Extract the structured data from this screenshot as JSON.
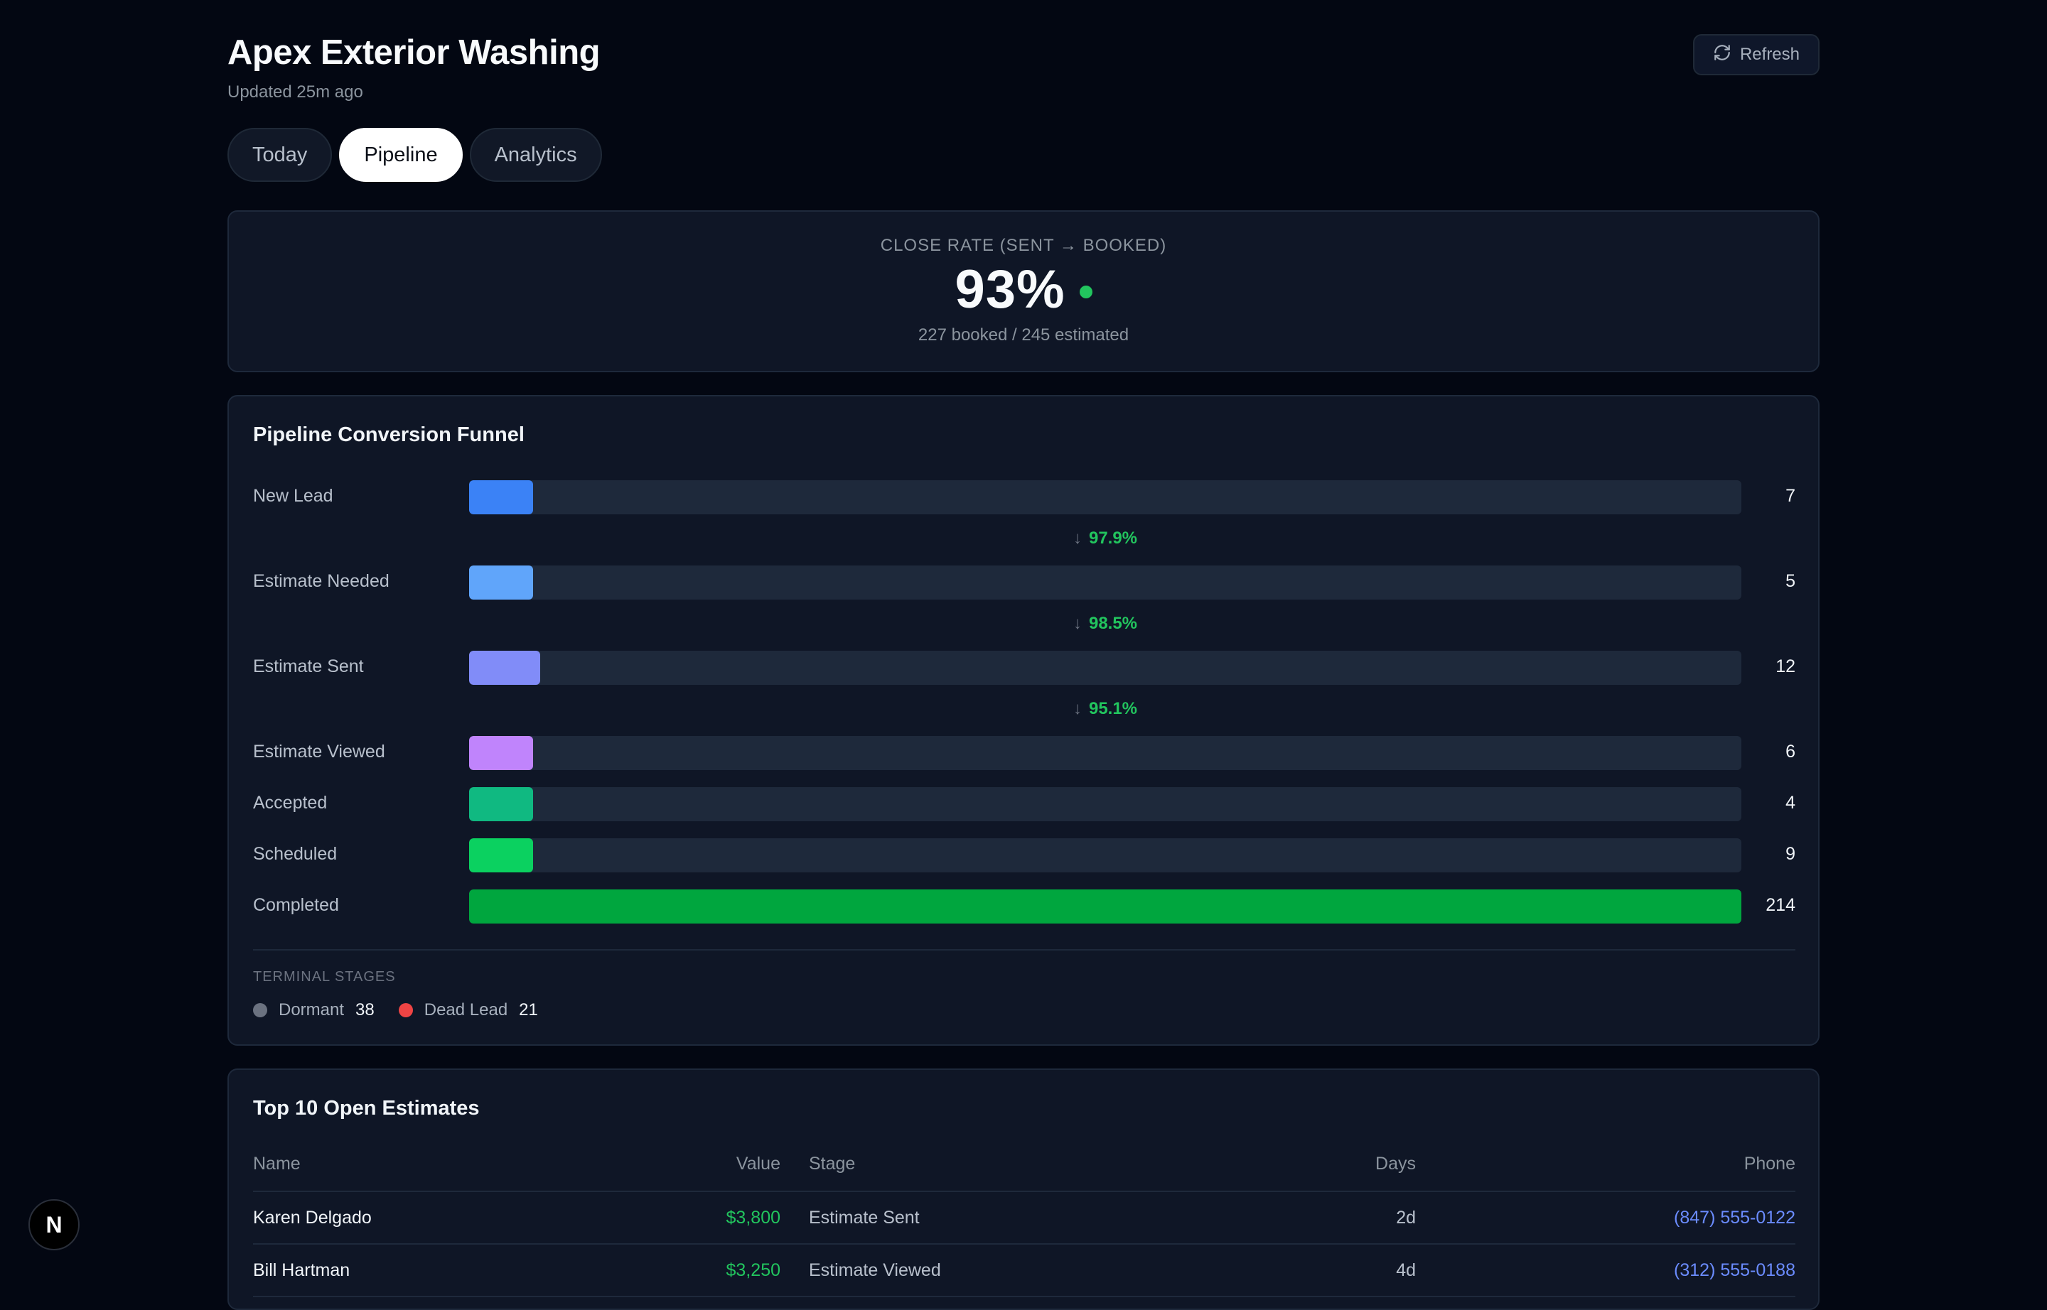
{
  "header": {
    "title": "Apex Exterior Washing",
    "updated": "Updated 25m ago",
    "refresh_label": "Refresh"
  },
  "tabs": [
    {
      "label": "Today",
      "active": false
    },
    {
      "label": "Pipeline",
      "active": true
    },
    {
      "label": "Analytics",
      "active": false
    }
  ],
  "close_rate": {
    "label": "CLOSE RATE (SENT → BOOKED)",
    "value": "93%",
    "detail": "227 booked / 245 estimated",
    "status_color": "#22c55e"
  },
  "funnel": {
    "title": "Pipeline Conversion Funnel",
    "max": 214,
    "stages": [
      {
        "label": "New Lead",
        "count": 7,
        "color": "#3b82f6"
      },
      {
        "label": "Estimate Needed",
        "count": 5,
        "color": "#60a5fa"
      },
      {
        "label": "Estimate Sent",
        "count": 12,
        "color": "#818cf8"
      },
      {
        "label": "Estimate Viewed",
        "count": 6,
        "color": "#c084fc"
      },
      {
        "label": "Accepted",
        "count": 4,
        "color": "#10b981"
      },
      {
        "label": "Scheduled",
        "count": 9,
        "color": "#0bd160"
      },
      {
        "label": "Completed",
        "count": 214,
        "color": "#00a63e"
      }
    ],
    "conversions": [
      "97.9%",
      "98.5%",
      "95.1%"
    ],
    "terminal_label": "TERMINAL STAGES",
    "terminal": [
      {
        "label": "Dormant",
        "count": "38",
        "color": "#6b7280"
      },
      {
        "label": "Dead Lead",
        "count": "21",
        "color": "#ef4444"
      }
    ]
  },
  "estimates": {
    "title": "Top 10 Open Estimates",
    "columns": {
      "name": "Name",
      "value": "Value",
      "stage": "Stage",
      "days": "Days",
      "phone": "Phone"
    },
    "rows": [
      {
        "name": "Karen Delgado",
        "value": "$3,800",
        "stage": "Estimate Sent",
        "days": "2d",
        "phone": "(847) 555-0122"
      },
      {
        "name": "Bill Hartman",
        "value": "$3,250",
        "stage": "Estimate Viewed",
        "days": "4d",
        "phone": "(312) 555-0188"
      }
    ]
  },
  "badge": {
    "label": "N"
  }
}
